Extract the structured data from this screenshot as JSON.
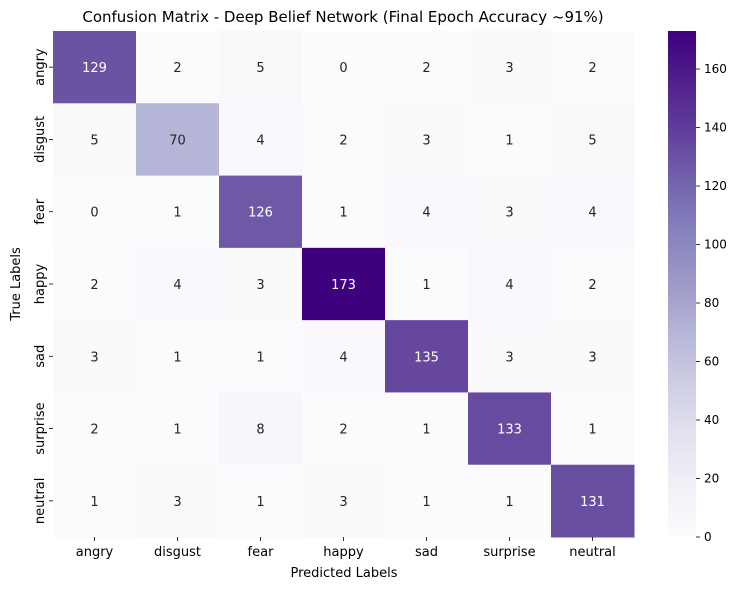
{
  "chart_data": {
    "type": "heatmap",
    "title": "Confusion Matrix - Deep Belief Network (Final Epoch Accuracy ~91%)",
    "xlabel": "Predicted Labels",
    "ylabel": "True Labels",
    "x_categories": [
      "angry",
      "disgust",
      "fear",
      "happy",
      "sad",
      "surprise",
      "neutral"
    ],
    "y_categories": [
      "angry",
      "disgust",
      "fear",
      "happy",
      "sad",
      "surprise",
      "neutral"
    ],
    "values": [
      [
        129,
        2,
        5,
        0,
        2,
        3,
        2
      ],
      [
        5,
        70,
        4,
        2,
        3,
        1,
        5
      ],
      [
        0,
        1,
        126,
        1,
        4,
        3,
        4
      ],
      [
        2,
        4,
        3,
        173,
        1,
        4,
        2
      ],
      [
        3,
        1,
        1,
        4,
        135,
        3,
        3
      ],
      [
        2,
        1,
        8,
        2,
        1,
        133,
        1
      ],
      [
        1,
        3,
        1,
        3,
        1,
        1,
        131
      ]
    ],
    "colormap": "Purples",
    "vmin": 0,
    "vmax": 173,
    "colorbar_ticks": [
      0,
      20,
      40,
      60,
      80,
      100,
      120,
      140,
      160
    ],
    "grid": false
  }
}
